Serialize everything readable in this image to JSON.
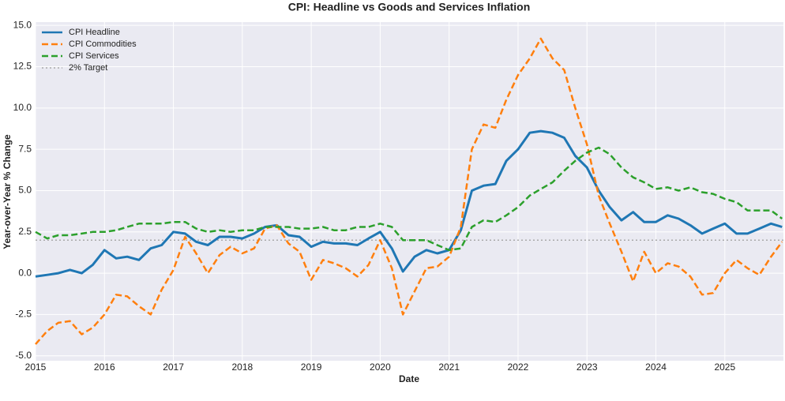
{
  "chart_data": {
    "type": "line",
    "title": "CPI: Headline vs Goods and Services Inflation",
    "xlabel": "Date",
    "ylabel": "Year-over-Year % Change",
    "x": [
      2015,
      2015.17,
      2015.33,
      2015.5,
      2015.67,
      2015.83,
      2016,
      2016.17,
      2016.33,
      2016.5,
      2016.67,
      2016.83,
      2017,
      2017.17,
      2017.33,
      2017.5,
      2017.67,
      2017.83,
      2018,
      2018.17,
      2018.33,
      2018.5,
      2018.67,
      2018.83,
      2019,
      2019.17,
      2019.33,
      2019.5,
      2019.67,
      2019.83,
      2020,
      2020.17,
      2020.33,
      2020.5,
      2020.67,
      2020.83,
      2021,
      2021.17,
      2021.33,
      2021.5,
      2021.67,
      2021.83,
      2022,
      2022.17,
      2022.33,
      2022.5,
      2022.67,
      2022.83,
      2023,
      2023.17,
      2023.33,
      2023.5,
      2023.67,
      2023.83,
      2024,
      2024.17,
      2024.33,
      2024.5,
      2024.67,
      2024.83,
      2025,
      2025.17,
      2025.33,
      2025.5,
      2025.67,
      2025.83
    ],
    "series": [
      {
        "name": "CPI Headline",
        "color": "#1f77b4",
        "style": "solid",
        "values": [
          -0.2,
          -0.1,
          0.0,
          0.2,
          0.0,
          0.5,
          1.4,
          0.9,
          1.0,
          0.8,
          1.5,
          1.7,
          2.5,
          2.4,
          1.9,
          1.7,
          2.2,
          2.2,
          2.1,
          2.4,
          2.8,
          2.9,
          2.3,
          2.2,
          1.6,
          1.9,
          1.8,
          1.8,
          1.7,
          2.1,
          2.5,
          1.5,
          0.1,
          1.0,
          1.4,
          1.2,
          1.4,
          2.6,
          5.0,
          5.3,
          5.4,
          6.8,
          7.5,
          8.5,
          8.6,
          8.5,
          8.2,
          7.1,
          6.4,
          5.0,
          4.0,
          3.2,
          3.7,
          3.1,
          3.1,
          3.5,
          3.3,
          2.9,
          2.4,
          2.7,
          3.0,
          2.4,
          2.4,
          2.7,
          3.0,
          2.8
        ]
      },
      {
        "name": "CPI Commodities",
        "color": "#ff7f0e",
        "style": "dashed",
        "values": [
          -4.3,
          -3.5,
          -3.0,
          -2.9,
          -3.7,
          -3.3,
          -2.5,
          -1.3,
          -1.4,
          -2.0,
          -2.5,
          -1.0,
          0.2,
          2.2,
          1.2,
          0.0,
          1.1,
          1.6,
          1.2,
          1.5,
          2.7,
          2.9,
          1.8,
          1.3,
          -0.4,
          0.8,
          0.6,
          0.3,
          -0.2,
          0.5,
          2.0,
          0.3,
          -2.5,
          -1.1,
          0.3,
          0.4,
          1.0,
          2.8,
          7.5,
          9.0,
          8.8,
          10.5,
          12.0,
          13.0,
          14.2,
          13.0,
          12.3,
          10.0,
          7.8,
          4.7,
          3.0,
          1.3,
          -0.5,
          1.3,
          0.0,
          0.6,
          0.4,
          -0.2,
          -1.3,
          -1.2,
          0.0,
          0.8,
          0.3,
          -0.1,
          1.0,
          1.9
        ]
      },
      {
        "name": "CPI Services",
        "color": "#2ca02c",
        "style": "dashed",
        "values": [
          2.5,
          2.1,
          2.3,
          2.3,
          2.4,
          2.5,
          2.5,
          2.6,
          2.8,
          3.0,
          3.0,
          3.0,
          3.1,
          3.1,
          2.7,
          2.5,
          2.6,
          2.5,
          2.6,
          2.6,
          2.8,
          2.8,
          2.8,
          2.7,
          2.7,
          2.8,
          2.6,
          2.6,
          2.8,
          2.8,
          3.0,
          2.8,
          2.0,
          2.0,
          2.0,
          1.7,
          1.4,
          1.5,
          2.8,
          3.2,
          3.1,
          3.5,
          4.0,
          4.7,
          5.1,
          5.5,
          6.2,
          6.8,
          7.3,
          7.6,
          7.2,
          6.4,
          5.8,
          5.5,
          5.1,
          5.2,
          5.0,
          5.2,
          4.9,
          4.8,
          4.5,
          4.3,
          3.8,
          3.8,
          3.8,
          3.3
        ]
      }
    ],
    "target": {
      "name": "2% Target",
      "value": 2,
      "color": "#aaaaaa"
    },
    "xlim": [
      2015,
      2025.85
    ],
    "xticks": [
      2015,
      2016,
      2017,
      2018,
      2019,
      2020,
      2021,
      2022,
      2023,
      2024,
      2025
    ],
    "ylim": [
      -5.3,
      15.2
    ],
    "yticks": [
      {
        "value": -5,
        "label": "-5.0"
      },
      -2.5,
      {
        "value": 0,
        "label": "0.0"
      },
      2.5,
      {
        "value": 5,
        "label": "5.0"
      },
      7.5,
      {
        "value": 10,
        "label": "10.0"
      },
      12.5,
      {
        "value": 15,
        "label": "15.0"
      }
    ],
    "grid": true,
    "legend": "upper left"
  }
}
